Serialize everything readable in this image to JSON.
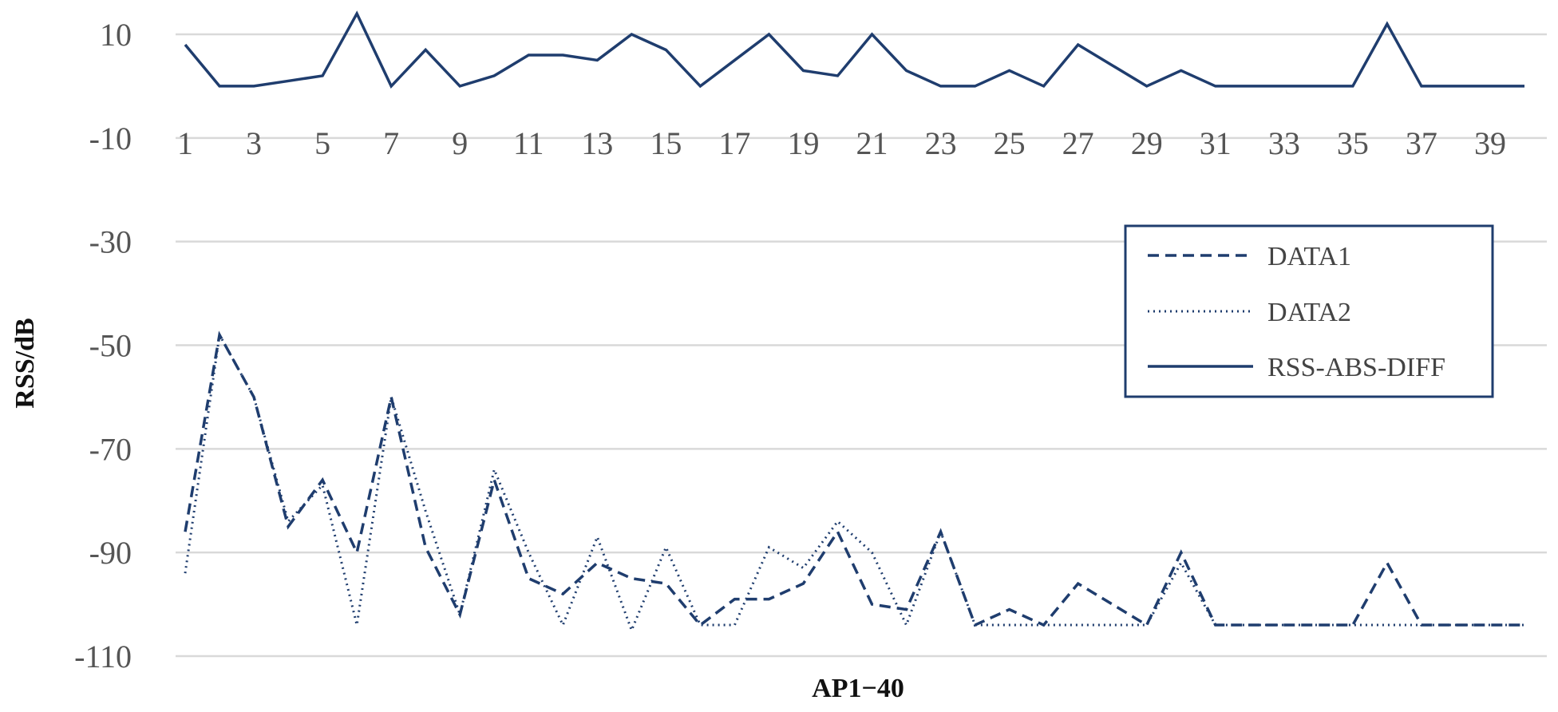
{
  "chart_data": {
    "type": "line",
    "xlabel": "AP1−40",
    "ylabel": "RSS/dB",
    "ylim": [
      -110,
      10
    ],
    "y_ticks": [
      10,
      -10,
      -30,
      -50,
      -70,
      -90,
      -110
    ],
    "x_ticks": [
      1,
      3,
      5,
      7,
      9,
      11,
      13,
      15,
      17,
      19,
      21,
      23,
      25,
      27,
      29,
      31,
      33,
      35,
      37,
      39
    ],
    "x": [
      1,
      2,
      3,
      4,
      5,
      6,
      7,
      8,
      9,
      10,
      11,
      12,
      13,
      14,
      15,
      16,
      17,
      18,
      19,
      20,
      21,
      22,
      23,
      24,
      25,
      26,
      27,
      28,
      29,
      30,
      31,
      32,
      33,
      34,
      35,
      36,
      37,
      38,
      39,
      40
    ],
    "grid": true,
    "legend_position": "right",
    "color": "#1f3d6e",
    "series": [
      {
        "name": "DATA1",
        "style": "dashed",
        "values": [
          -86,
          -48,
          -60,
          -85,
          -76,
          -90,
          -60,
          -89,
          -102,
          -76,
          -95,
          -98,
          -92,
          -95,
          -96,
          -104,
          -99,
          -99,
          -96,
          -86,
          -100,
          -101,
          -86,
          -104,
          -101,
          -104,
          -96,
          -100,
          -104,
          -90,
          -104,
          -104,
          -104,
          -104,
          -104,
          -92,
          -104,
          -104,
          -104,
          -104
        ]
      },
      {
        "name": "DATA2",
        "style": "dotted",
        "values": [
          -94,
          -48,
          -60,
          -84,
          -77,
          -104,
          -60,
          -82,
          -102,
          -74,
          -90,
          -104,
          -87,
          -105,
          -89,
          -104,
          -104,
          -89,
          -93,
          -84,
          -90,
          -104,
          -86,
          -104,
          -104,
          -104,
          -104,
          -104,
          -104,
          -92,
          -104,
          -104,
          -104,
          -104,
          -104,
          -104,
          -104,
          -104,
          -104,
          -104
        ]
      },
      {
        "name": "RSS-ABS-DIFF",
        "style": "solid",
        "values": [
          8,
          0,
          0,
          1,
          2,
          14,
          0,
          7,
          0,
          2,
          6,
          6,
          5,
          10,
          7,
          0,
          5,
          10,
          3,
          2,
          10,
          3,
          0,
          0,
          3,
          0,
          8,
          4,
          0,
          3,
          0,
          0,
          0,
          0,
          0,
          12,
          0,
          0,
          0,
          0
        ]
      }
    ]
  }
}
